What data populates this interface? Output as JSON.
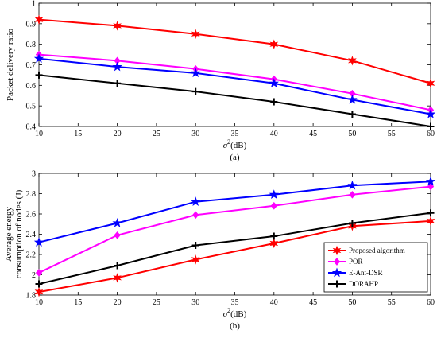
{
  "colors": {
    "proposed": "#ff0000",
    "por": "#ff00ff",
    "eant": "#0000ff",
    "dorahp": "#000000"
  },
  "chart_data": [
    {
      "type": "line",
      "caption": "(a)",
      "xlabel": "σ²(dB)",
      "ylabel": "Packet delivery ratio",
      "xlim": [
        10,
        60
      ],
      "ylim": [
        0.4,
        1
      ],
      "xticks": [
        10,
        15,
        20,
        25,
        30,
        35,
        40,
        45,
        50,
        55,
        60
      ],
      "yticks": [
        0.4,
        0.5,
        0.6,
        0.7,
        0.8,
        0.9,
        1
      ],
      "yticklabels": [
        "0.4",
        "0.5",
        "0.6",
        "0.7",
        "0.8",
        "0.9",
        "1"
      ],
      "x": [
        10,
        20,
        30,
        40,
        50,
        60
      ],
      "grid": false,
      "series": [
        {
          "name": "Proposed algorithm",
          "color": "#ff0000",
          "marker": "star",
          "values": [
            0.92,
            0.89,
            0.85,
            0.8,
            0.72,
            0.61
          ]
        },
        {
          "name": "POR",
          "color": "#ff00ff",
          "marker": "diamond",
          "values": [
            0.75,
            0.72,
            0.68,
            0.63,
            0.56,
            0.48
          ]
        },
        {
          "name": "E-Ant-DSR",
          "color": "#0000ff",
          "marker": "pentagram",
          "values": [
            0.73,
            0.69,
            0.66,
            0.61,
            0.53,
            0.46
          ]
        },
        {
          "name": "DORAHP",
          "color": "#000000",
          "marker": "plus",
          "values": [
            0.65,
            0.61,
            0.57,
            0.52,
            0.46,
            0.4
          ]
        }
      ]
    },
    {
      "type": "line",
      "caption": "(b)",
      "xlabel": "σ²(dB)",
      "ylabel_lines": [
        "Average energy",
        "consumption of nodes (J)"
      ],
      "xlim": [
        10,
        60
      ],
      "ylim": [
        1.8,
        3
      ],
      "xticks": [
        10,
        15,
        20,
        25,
        30,
        35,
        40,
        45,
        50,
        55,
        60
      ],
      "yticks": [
        1.8,
        2,
        2.2,
        2.4,
        2.6,
        2.8,
        3
      ],
      "yticklabels": [
        "1.8",
        "2",
        "2.2",
        "2.4",
        "2.6",
        "2.8",
        "3"
      ],
      "x": [
        10,
        20,
        30,
        40,
        50,
        60
      ],
      "grid": false,
      "legend": "bottom-right",
      "series": [
        {
          "name": "Proposed algorithm",
          "color": "#ff0000",
          "marker": "star",
          "values": [
            1.83,
            1.97,
            2.15,
            2.31,
            2.48,
            2.53
          ]
        },
        {
          "name": "POR",
          "color": "#ff00ff",
          "marker": "diamond",
          "values": [
            2.02,
            2.39,
            2.59,
            2.68,
            2.79,
            2.87
          ]
        },
        {
          "name": "E-Ant-DSR",
          "color": "#0000ff",
          "marker": "pentagram",
          "values": [
            2.32,
            2.51,
            2.72,
            2.79,
            2.88,
            2.92
          ]
        },
        {
          "name": "DORAHP",
          "color": "#000000",
          "marker": "plus",
          "values": [
            1.91,
            2.09,
            2.29,
            2.38,
            2.51,
            2.61
          ]
        }
      ]
    }
  ]
}
